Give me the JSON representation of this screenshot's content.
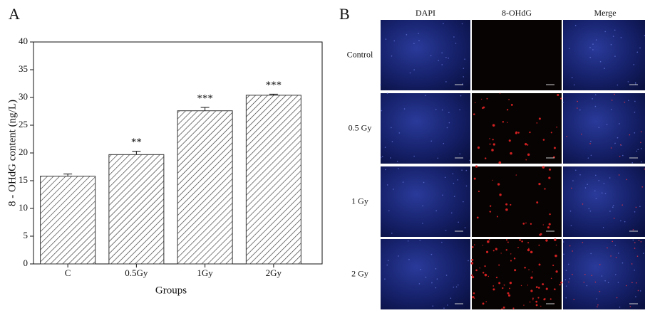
{
  "chart_data": {
    "type": "bar",
    "panel_label": "A",
    "x_label": "Groups",
    "y_label": "8 - OHdG content (ng/L)",
    "categories": [
      "C",
      "0.5Gy",
      "1Gy",
      "2Gy"
    ],
    "values": [
      15.8,
      19.7,
      27.6,
      30.4
    ],
    "errors": [
      0.4,
      0.6,
      0.6,
      0.2
    ],
    "annotations": [
      null,
      "**",
      "***",
      "***"
    ],
    "color": "#333333",
    "ylim": [
      0,
      40
    ],
    "yticks": [
      0,
      5,
      10,
      15,
      20,
      25,
      30,
      35,
      40
    ]
  },
  "panel_b": {
    "label": "B",
    "columns": [
      "DAPI",
      "8-OHdG",
      "Merge"
    ],
    "rows": [
      "Control",
      "0.5 Gy",
      "1 Gy",
      "2 Gy"
    ]
  }
}
